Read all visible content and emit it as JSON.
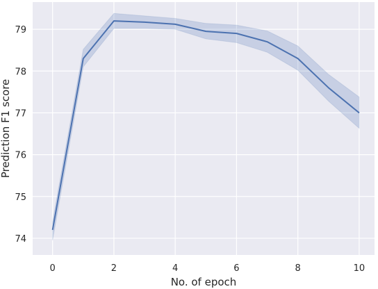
{
  "chart_data": {
    "type": "line",
    "title": "",
    "xlabel": "No. of epoch",
    "ylabel": "Prediction F1 score",
    "xlim": [
      -0.65,
      10.5
    ],
    "ylim": [
      73.6,
      79.65
    ],
    "xticks": [
      0,
      2,
      4,
      6,
      8,
      10
    ],
    "yticks": [
      74,
      75,
      76,
      77,
      78,
      79
    ],
    "grid": true,
    "legend": "none",
    "style": {
      "background": "#EAEAF2",
      "grid_color": "#FFFFFF",
      "line_color": "#4C72B0",
      "band_color": "#4C72B0"
    },
    "series": [
      {
        "x": [
          0,
          1,
          2,
          3,
          4,
          5,
          6,
          7,
          8,
          9,
          10
        ],
        "y": [
          74.2,
          78.3,
          79.2,
          79.17,
          79.12,
          78.95,
          78.9,
          78.7,
          78.3,
          77.6,
          77.0
        ],
        "y_lower": [
          73.95,
          78.1,
          79.02,
          79.02,
          79.0,
          78.77,
          78.68,
          78.45,
          78.02,
          77.28,
          76.63
        ],
        "y_upper": [
          74.4,
          78.52,
          79.38,
          79.32,
          79.26,
          79.14,
          79.1,
          78.96,
          78.6,
          77.92,
          77.38
        ]
      }
    ]
  }
}
